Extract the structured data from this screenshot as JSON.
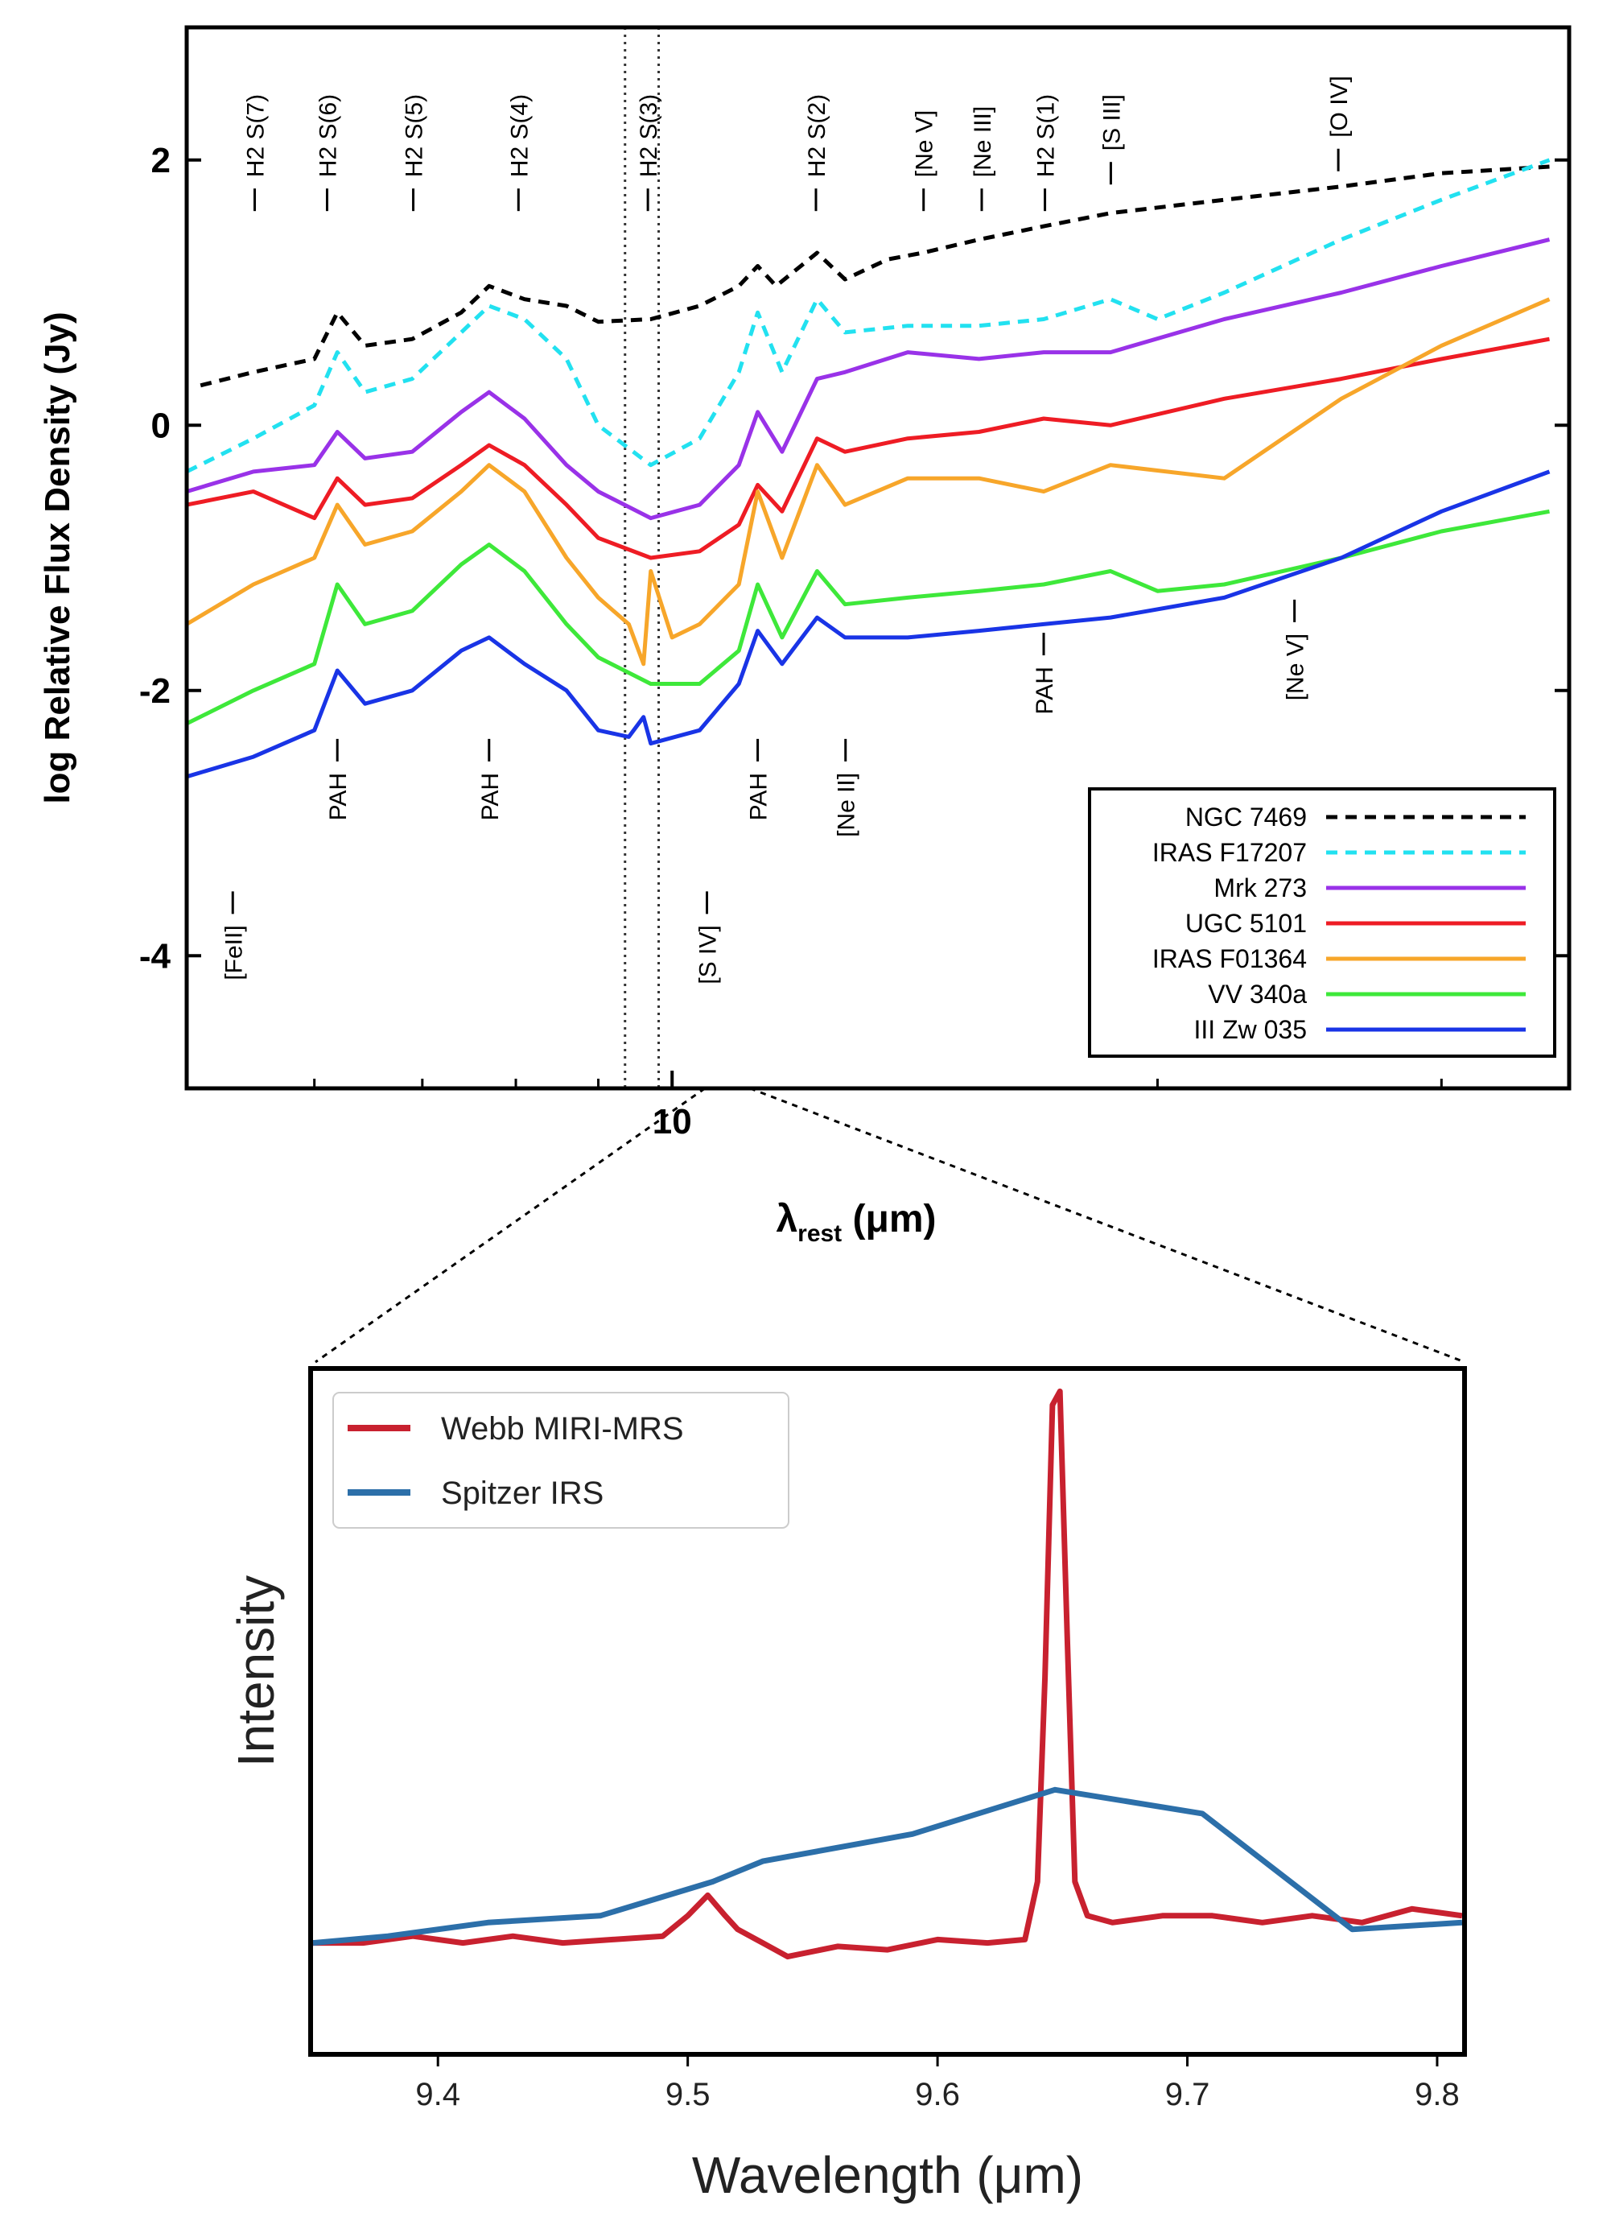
{
  "chart_data": [
    {
      "type": "line",
      "title": "",
      "xlabel": "λ",
      "xlabel_sub": "rest",
      "xlabel_unit": " (μm)",
      "ylabel": "log Relative Flux Density (Jy)",
      "xscale": "log",
      "xlim": [
        5.0,
        36.0
      ],
      "ylim": [
        -5.0,
        3.0
      ],
      "ytick_values": [
        -4,
        -2,
        0,
        2
      ],
      "ytick_labels": [
        "-4",
        "-2",
        "0",
        "2"
      ],
      "xtick_values": [
        10
      ],
      "xtick_labels": [
        "10"
      ],
      "xminor_ticks": [
        5,
        6,
        7,
        8,
        9,
        20,
        30
      ],
      "zoom_window_um": [
        9.35,
        9.81
      ],
      "grid": false,
      "legend_position": "bottom-right",
      "series": [
        {
          "name": "NGC 7469",
          "color": "#000000",
          "dash": true,
          "x": [
            5.1,
            5.5,
            6.0,
            6.2,
            6.45,
            6.9,
            7.4,
            7.7,
            8.1,
            8.6,
            9.0,
            9.7,
            10.4,
            11.0,
            11.3,
            11.6,
            12.3,
            12.8,
            13.6,
            14.3,
            15.5,
            17.0,
            18.7,
            22,
            26,
            30,
            35
          ],
          "y": [
            0.3,
            0.4,
            0.5,
            0.85,
            0.6,
            0.65,
            0.85,
            1.05,
            0.95,
            0.9,
            0.78,
            0.8,
            0.9,
            1.05,
            1.2,
            1.05,
            1.3,
            1.1,
            1.25,
            1.3,
            1.4,
            1.5,
            1.6,
            1.7,
            1.8,
            1.9,
            1.95
          ]
        },
        {
          "name": "IRAS F17207",
          "color": "#22e1f0",
          "dash": true,
          "x": [
            5.0,
            5.5,
            6.0,
            6.2,
            6.45,
            6.9,
            7.4,
            7.7,
            8.1,
            8.6,
            9.0,
            9.7,
            10.4,
            11.0,
            11.3,
            11.7,
            12.3,
            12.8,
            14,
            15.5,
            17,
            18.7,
            20,
            22,
            26,
            30,
            35
          ],
          "y": [
            -0.35,
            -0.1,
            0.15,
            0.55,
            0.25,
            0.35,
            0.7,
            0.9,
            0.8,
            0.5,
            0.0,
            -0.3,
            -0.1,
            0.4,
            0.85,
            0.4,
            0.95,
            0.7,
            0.75,
            0.75,
            0.8,
            0.95,
            0.8,
            1.0,
            1.4,
            1.7,
            2.0
          ]
        },
        {
          "name": "Mrk 273",
          "color": "#9932e8",
          "dash": false,
          "x": [
            5.0,
            5.5,
            6.0,
            6.2,
            6.45,
            6.9,
            7.4,
            7.7,
            8.1,
            8.6,
            9.0,
            9.7,
            10.4,
            11.0,
            11.3,
            11.7,
            12.3,
            12.8,
            14,
            15.5,
            17,
            18.7,
            22,
            26,
            30,
            35
          ],
          "y": [
            -0.5,
            -0.35,
            -0.3,
            -0.05,
            -0.25,
            -0.2,
            0.1,
            0.25,
            0.05,
            -0.3,
            -0.5,
            -0.7,
            -0.6,
            -0.3,
            0.1,
            -0.2,
            0.35,
            0.4,
            0.55,
            0.5,
            0.55,
            0.55,
            0.8,
            1.0,
            1.2,
            1.4
          ]
        },
        {
          "name": "UGC 5101",
          "color": "#ee1c24",
          "dash": false,
          "x": [
            5.0,
            5.5,
            6.0,
            6.2,
            6.45,
            6.9,
            7.4,
            7.7,
            8.1,
            8.6,
            9.0,
            9.7,
            10.4,
            11.0,
            11.3,
            11.7,
            12.3,
            12.8,
            14,
            15.5,
            17,
            18.7,
            22,
            26,
            30,
            35
          ],
          "y": [
            -0.6,
            -0.5,
            -0.7,
            -0.4,
            -0.6,
            -0.55,
            -0.3,
            -0.15,
            -0.3,
            -0.6,
            -0.85,
            -1.0,
            -0.95,
            -0.75,
            -0.45,
            -0.65,
            -0.1,
            -0.2,
            -0.1,
            -0.05,
            0.05,
            0.0,
            0.2,
            0.35,
            0.5,
            0.65
          ]
        },
        {
          "name": "IRAS F01364",
          "color": "#f7a62a",
          "dash": false,
          "x": [
            5.0,
            5.5,
            6.0,
            6.2,
            6.45,
            6.9,
            7.4,
            7.7,
            8.1,
            8.6,
            9.0,
            9.4,
            9.6,
            9.7,
            10.0,
            10.4,
            11.0,
            11.3,
            11.7,
            12.3,
            12.8,
            14,
            15.5,
            17,
            18.7,
            22,
            26,
            30,
            35
          ],
          "y": [
            -1.5,
            -1.2,
            -1.0,
            -0.6,
            -0.9,
            -0.8,
            -0.5,
            -0.3,
            -0.5,
            -1.0,
            -1.3,
            -1.5,
            -1.8,
            -1.1,
            -1.6,
            -1.5,
            -1.2,
            -0.5,
            -1.0,
            -0.3,
            -0.6,
            -0.4,
            -0.4,
            -0.5,
            -0.3,
            -0.4,
            0.2,
            0.6,
            0.95
          ]
        },
        {
          "name": "VV 340a",
          "color": "#3ee83a",
          "dash": false,
          "x": [
            5.0,
            5.5,
            6.0,
            6.2,
            6.45,
            6.9,
            7.4,
            7.7,
            8.1,
            8.6,
            9.0,
            9.7,
            10.4,
            11.0,
            11.3,
            11.7,
            12.3,
            12.8,
            14,
            15.5,
            17,
            18.7,
            20,
            22,
            26,
            30,
            35
          ],
          "y": [
            -2.25,
            -2.0,
            -1.8,
            -1.2,
            -1.5,
            -1.4,
            -1.05,
            -0.9,
            -1.1,
            -1.5,
            -1.75,
            -1.95,
            -1.95,
            -1.7,
            -1.2,
            -1.6,
            -1.1,
            -1.35,
            -1.3,
            -1.25,
            -1.2,
            -1.1,
            -1.25,
            -1.2,
            -1.0,
            -0.8,
            -0.65
          ]
        },
        {
          "name": "III Zw 035",
          "color": "#1934e6",
          "dash": false,
          "x": [
            5.0,
            5.5,
            6.0,
            6.2,
            6.45,
            6.9,
            7.4,
            7.7,
            8.1,
            8.6,
            9.0,
            9.4,
            9.6,
            9.7,
            10.4,
            11.0,
            11.3,
            11.7,
            12.3,
            12.8,
            14,
            15.5,
            17,
            18.7,
            22,
            26,
            30,
            35
          ],
          "y": [
            -2.65,
            -2.5,
            -2.3,
            -1.85,
            -2.1,
            -2.0,
            -1.7,
            -1.6,
            -1.8,
            -2.0,
            -2.3,
            -2.35,
            -2.2,
            -2.4,
            -2.3,
            -1.95,
            -1.55,
            -1.8,
            -1.45,
            -1.6,
            -1.6,
            -1.55,
            -1.5,
            -1.45,
            -1.3,
            -1.0,
            -0.65,
            -0.35
          ]
        }
      ],
      "line_labels_top": [
        {
          "label": "H2 S(7)",
          "x": 5.51,
          "y": 1.7
        },
        {
          "label": "H2 S(6)",
          "x": 6.11,
          "y": 1.7
        },
        {
          "label": "H2 S(5)",
          "x": 6.91,
          "y": 1.7
        },
        {
          "label": "H2 S(4)",
          "x": 8.03,
          "y": 1.7
        },
        {
          "label": "H2 S(3)",
          "x": 9.66,
          "y": 1.7
        },
        {
          "label": "H2 S(2)",
          "x": 12.28,
          "y": 1.7
        },
        {
          "label": "[Ne V]",
          "x": 14.32,
          "y": 1.7
        },
        {
          "label": "[Ne III]",
          "x": 15.56,
          "y": 1.7
        },
        {
          "label": "H2 S(1)",
          "x": 17.03,
          "y": 1.7
        },
        {
          "label": "[S III]",
          "x": 18.71,
          "y": 1.9
        },
        {
          "label": "[O IV]",
          "x": 25.89,
          "y": 2.0
        }
      ],
      "line_labels_bottom": [
        {
          "label": "[FeII]",
          "x": 5.34,
          "y": -3.6
        },
        {
          "label": "PAH",
          "x": 6.2,
          "y": -2.45
        },
        {
          "label": "PAH",
          "x": 7.7,
          "y": -2.45
        },
        {
          "label": "[S IV]",
          "x": 10.51,
          "y": -3.6
        },
        {
          "label": "PAH",
          "x": 11.3,
          "y": -2.45
        },
        {
          "label": "[Ne II]",
          "x": 12.81,
          "y": -2.45
        },
        {
          "label": "PAH",
          "x": 17.0,
          "y": -1.65
        },
        {
          "label": "[Ne V]",
          "x": 24.32,
          "y": -1.4
        }
      ]
    },
    {
      "type": "line",
      "title": "",
      "xlabel": "Wavelength (μm)",
      "ylabel": "Intensity",
      "xlim": [
        9.35,
        9.81
      ],
      "ylim": [
        0,
        1
      ],
      "xtick_values": [
        9.4,
        9.5,
        9.6,
        9.7,
        9.8
      ],
      "xtick_labels": [
        "9.4",
        "9.5",
        "9.6",
        "9.7",
        "9.8"
      ],
      "grid": false,
      "legend_position": "top-left",
      "series": [
        {
          "name": "Webb MIRI-MRS",
          "color": "#c8212f",
          "x": [
            9.35,
            9.37,
            9.39,
            9.41,
            9.43,
            9.45,
            9.47,
            9.49,
            9.5,
            9.508,
            9.515,
            9.52,
            9.53,
            9.54,
            9.56,
            9.58,
            9.6,
            9.62,
            9.635,
            9.64,
            9.643,
            9.646,
            9.649,
            9.652,
            9.655,
            9.66,
            9.67,
            9.69,
            9.71,
            9.73,
            9.75,
            9.77,
            9.79,
            9.81
          ],
          "y": [
            0.16,
            0.16,
            0.17,
            0.16,
            0.17,
            0.16,
            0.165,
            0.17,
            0.2,
            0.23,
            0.2,
            0.18,
            0.16,
            0.14,
            0.155,
            0.15,
            0.165,
            0.16,
            0.165,
            0.25,
            0.55,
            0.95,
            0.97,
            0.6,
            0.25,
            0.2,
            0.19,
            0.2,
            0.2,
            0.19,
            0.2,
            0.19,
            0.21,
            0.2
          ]
        },
        {
          "name": "Spitzer IRS",
          "color": "#2c6fa9",
          "x": [
            9.35,
            9.38,
            9.42,
            9.465,
            9.51,
            9.53,
            9.59,
            9.647,
            9.706,
            9.766,
            9.81
          ],
          "y": [
            0.16,
            0.17,
            0.19,
            0.2,
            0.25,
            0.28,
            0.32,
            0.385,
            0.35,
            0.18,
            0.19
          ]
        }
      ]
    }
  ]
}
